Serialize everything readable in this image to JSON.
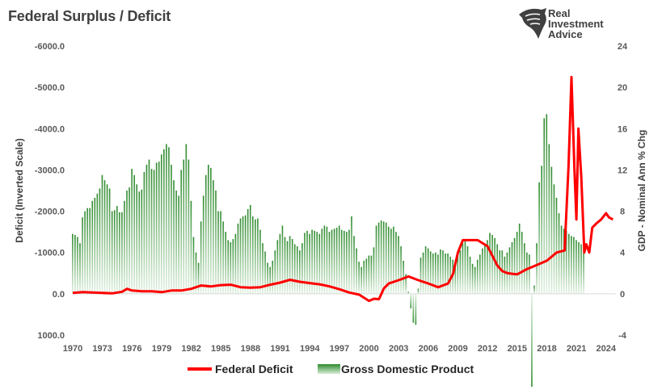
{
  "title": "Federal Surplus / Deficit",
  "logo": {
    "line1": "Real",
    "line2": "Investment",
    "line3": "Advice"
  },
  "chart_data": {
    "type": "bar+line",
    "title": "Federal Surplus / Deficit",
    "xlabel": "",
    "ylabel_left": "Deficit (Inverted Scale)",
    "ylabel_right": "GDP - Nominal Ann % Chg",
    "left_axis": {
      "min": -6000,
      "max": 1000,
      "inverted": true,
      "ticks": [
        "-6000.0",
        "-5000.0",
        "-4000.0",
        "-3000.0",
        "-2000.0",
        "-1000.0",
        "0.0",
        "1000.0"
      ],
      "tick_values": [
        -6000,
        -5000,
        -4000,
        -3000,
        -2000,
        -1000,
        0,
        1000
      ]
    },
    "right_axis": {
      "min": -4,
      "max": 24,
      "ticks": [
        "24",
        "20",
        "16",
        "12",
        "8",
        "4",
        "0",
        "-4"
      ],
      "tick_values": [
        24,
        20,
        16,
        12,
        8,
        4,
        0,
        -4
      ]
    },
    "x_axis": {
      "min": 1970,
      "max": 2025,
      "ticks": [
        "1970",
        "1973",
        "1976",
        "1979",
        "1982",
        "1985",
        "1988",
        "1991",
        "1994",
        "1997",
        "2000",
        "2003",
        "2006",
        "2009",
        "2012",
        "2015",
        "2018",
        "2021",
        "2024"
      ],
      "tick_values": [
        1970,
        1973,
        1976,
        1979,
        1982,
        1985,
        1988,
        1991,
        1994,
        1997,
        2000,
        2003,
        2006,
        2009,
        2012,
        2015,
        2018,
        2021,
        2024
      ]
    },
    "legend": {
      "placement": "bottom",
      "entries": [
        {
          "name": "Federal Deficit",
          "color": "#ff0000",
          "type": "line"
        },
        {
          "name": "Gross Domestic Product",
          "color": "#3a9a3a",
          "type": "bar"
        }
      ]
    },
    "series": [
      {
        "name": "Federal Deficit",
        "axis": "left",
        "color": "#ff0000",
        "x": [
          1970,
          1971,
          1972,
          1973,
          1974,
          1975,
          1975.5,
          1976,
          1977,
          1978,
          1979,
          1980,
          1981,
          1982,
          1983,
          1984,
          1985,
          1986,
          1987,
          1988,
          1989,
          1990,
          1991,
          1992,
          1993,
          1994,
          1995,
          1996,
          1997,
          1998,
          1999,
          2000,
          2000.5,
          2001,
          2001.5,
          2002,
          2003,
          2004,
          2005,
          2006,
          2007,
          2008,
          2008.5,
          2009,
          2009.5,
          2010,
          2011,
          2012,
          2013,
          2013.5,
          2014,
          2015,
          2016,
          2017,
          2018,
          2019,
          2019.8,
          2020.2,
          2020.5,
          2020.8,
          2021,
          2021.2,
          2021.5,
          2021.8,
          2022,
          2022.3,
          2022.6,
          2023,
          2023.5,
          2024,
          2024.3,
          2024.7
        ],
        "values": [
          -20,
          -40,
          -30,
          -20,
          -10,
          -50,
          -120,
          -80,
          -60,
          -60,
          -40,
          -80,
          -80,
          -120,
          -200,
          -180,
          -210,
          -220,
          -160,
          -150,
          -160,
          -220,
          -270,
          -340,
          -290,
          -260,
          -230,
          -180,
          -110,
          -30,
          20,
          170,
          120,
          130,
          -130,
          -250,
          -330,
          -420,
          -330,
          -250,
          -160,
          -250,
          -480,
          -1000,
          -1300,
          -1300,
          -1300,
          -1150,
          -680,
          -550,
          -500,
          -470,
          -600,
          -700,
          -800,
          -1000,
          -1050,
          -3100,
          -5250,
          -3000,
          -1800,
          -4000,
          -2800,
          -1000,
          -1200,
          -1000,
          -1600,
          -1700,
          -1800,
          -1950,
          -1850,
          -1800
        ]
      },
      {
        "name": "Gross Domestic Product",
        "axis": "right",
        "color": "#3a9a3a",
        "x_start": 1970.0,
        "x_step": 0.25,
        "values": [
          5.8,
          5.7,
          5.5,
          4.9,
          7.4,
          8.0,
          8.3,
          8.3,
          9.0,
          9.3,
          9.7,
          10.2,
          11.5,
          11.0,
          10.6,
          10.2,
          8.0,
          8.1,
          8.5,
          7.9,
          7.9,
          9.0,
          10.0,
          10.3,
          12.1,
          11.5,
          10.6,
          9.9,
          10.1,
          11.8,
          12.5,
          13.0,
          12.1,
          12.0,
          12.7,
          12.8,
          13.5,
          14.0,
          14.5,
          14.2,
          12.5,
          11.0,
          10.0,
          9.5,
          12.0,
          13.0,
          14.5,
          13.0,
          9.0,
          5.5,
          4.0,
          3.0,
          7.0,
          9.5,
          11.5,
          12.5,
          12.2,
          11.0,
          10.0,
          8.0,
          8.0,
          7.0,
          6.0,
          5.2,
          5.0,
          5.3,
          5.8,
          6.8,
          7.3,
          7.5,
          7.6,
          8.2,
          8.6,
          7.5,
          7.2,
          7.3,
          6.2,
          4.9,
          4.1,
          3.0,
          2.6,
          3.2,
          4.2,
          5.2,
          5.8,
          6.6,
          5.5,
          5.1,
          5.6,
          5.3,
          4.8,
          4.6,
          4.2,
          4.9,
          5.9,
          6.1,
          5.8,
          6.2,
          6.1,
          6.0,
          5.8,
          6.3,
          6.6,
          6.5,
          6.0,
          6.2,
          6.3,
          6.4,
          6.6,
          6.2,
          6.1,
          6.0,
          6.2,
          7.5,
          5.6,
          4.4,
          3.1,
          2.6,
          3.2,
          3.4,
          3.7,
          3.7,
          4.5,
          6.6,
          6.9,
          7.1,
          7.0,
          6.9,
          6.5,
          6.3,
          6.5,
          6.0,
          5.6,
          4.6,
          3.2,
          1.9,
          0.2,
          -1.4,
          -2.8,
          -3.0,
          0.5,
          3.5,
          4.0,
          4.6,
          4.4,
          4.1,
          3.9,
          4.0,
          3.8,
          4.3,
          4.2,
          3.9,
          3.9,
          3.6,
          3.3,
          3.0,
          3.8,
          4.2,
          4.9,
          5.1,
          4.6,
          3.6,
          2.9,
          2.6,
          3.3,
          3.8,
          4.4,
          4.8,
          5.2,
          5.9,
          5.7,
          5.4,
          4.8,
          4.2,
          4.2,
          3.6,
          4.0,
          4.5,
          5.0,
          5.4,
          6.0,
          6.8,
          6.0,
          4.9,
          4.0,
          3.8,
          -9.0,
          0.8,
          4.9,
          10.8,
          12.4,
          17.0,
          17.4,
          14.5,
          12.3,
          10.6,
          9.3,
          7.8,
          6.6,
          6.3,
          6.1,
          5.8,
          5.6,
          5.5,
          5.2,
          5.0,
          4.8,
          4.5
        ]
      }
    ]
  }
}
